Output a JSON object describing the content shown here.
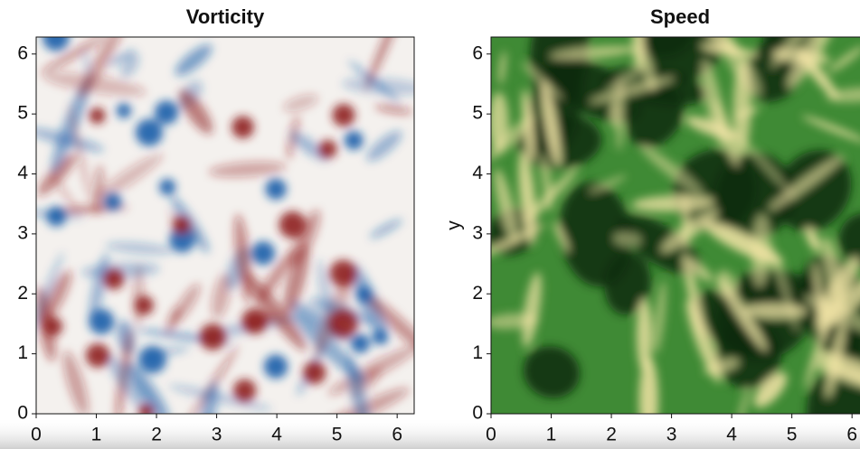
{
  "chart_data": [
    {
      "type": "heatmap",
      "title": "Vorticity",
      "xlim": [
        0,
        6.283
      ],
      "ylim": [
        0,
        6.283
      ],
      "xticks": [
        0,
        1,
        2,
        3,
        4,
        5,
        6
      ],
      "yticks": [
        0,
        1,
        2,
        3,
        4,
        5,
        6
      ],
      "colors": [
        "#1a5ca8",
        "#f4f1ee",
        "#8e1c1c"
      ]
    },
    {
      "type": "heatmap",
      "title": "Speed",
      "ylabel": "y",
      "xlim": [
        0,
        6.283
      ],
      "ylim": [
        0,
        6.283
      ],
      "xticks": [
        0,
        1,
        2,
        3,
        4,
        5,
        6
      ],
      "yticks": [
        0,
        1,
        2,
        3,
        4,
        5,
        6
      ],
      "colors": [
        "#0c2a0e",
        "#3f8a35",
        "#f2e4a6"
      ]
    }
  ]
}
